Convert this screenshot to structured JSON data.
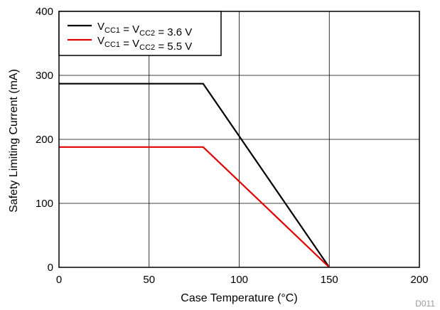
{
  "chart_data": {
    "type": "line",
    "xlabel": "Case Temperature (°C)",
    "ylabel": "Safety Limiting Current (mA)",
    "xlim": [
      0,
      200
    ],
    "ylim": [
      0,
      400
    ],
    "xticks": [
      0,
      50,
      100,
      150,
      200
    ],
    "yticks": [
      0,
      100,
      200,
      300,
      400
    ],
    "grid": true,
    "legend_position": "top-left",
    "series": [
      {
        "name": "V_CC1 = V_CC2 = 3.6 V",
        "legend": {
          "main1": "V",
          "sub1": "CC1",
          "main2": " = V",
          "sub2": "CC2",
          "main3": " = 3.6 V"
        },
        "color": "#000000",
        "x": [
          0,
          80,
          150
        ],
        "y": [
          287,
          287,
          0
        ]
      },
      {
        "name": "V_CC1 = V_CC2 = 5.5 V",
        "legend": {
          "main1": "V",
          "sub1": "CC1",
          "main2": " = V",
          "sub2": "CC2",
          "main3": " = 5.5 V"
        },
        "color": "#e00000",
        "x": [
          0,
          80,
          150
        ],
        "y": [
          188,
          188,
          0
        ]
      }
    ],
    "figure_id": "D011"
  }
}
